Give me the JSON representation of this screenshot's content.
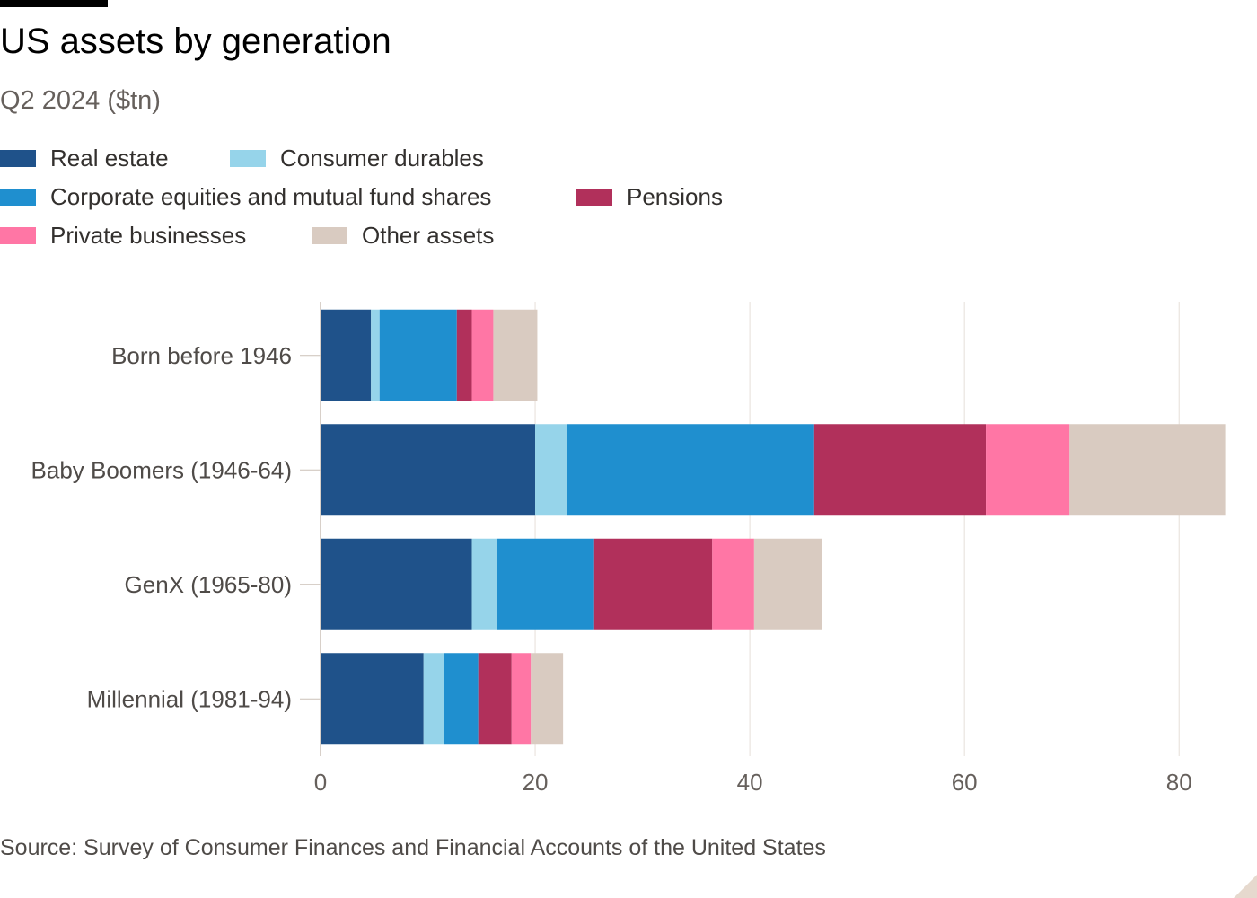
{
  "title": "US assets by generation",
  "subtitle": "Q2 2024 ($tn)",
  "source": "Source: Survey of Consumer Finances and Financial Accounts of the United States",
  "chart_data": {
    "type": "bar",
    "orientation": "horizontal",
    "stacked": true,
    "title": "US assets by generation",
    "subtitle": "Q2 2024 ($tn)",
    "xlabel": "",
    "ylabel": "",
    "xlim": [
      0,
      84.5
    ],
    "xticks": [
      0,
      20,
      40,
      60,
      80
    ],
    "grid": "vertical",
    "legend_position": "top",
    "categories": [
      "Born before 1946",
      "Baby Boomers (1946-64)",
      "GenX (1965-80)",
      "Millennial (1981-94)"
    ],
    "series": [
      {
        "name": "Real estate",
        "color": "#1f528a",
        "values": [
          4.7,
          20.0,
          14.1,
          9.6
        ]
      },
      {
        "name": "Consumer durables",
        "color": "#96d4ea",
        "values": [
          0.8,
          3.0,
          2.3,
          1.9
        ]
      },
      {
        "name": "Corporate equities and mutual fund shares",
        "color": "#1f8fcf",
        "values": [
          7.2,
          23.0,
          9.1,
          3.2
        ]
      },
      {
        "name": "Pensions",
        "color": "#b1305b",
        "values": [
          1.4,
          16.0,
          11.0,
          3.1
        ]
      },
      {
        "name": "Private businesses",
        "color": "#ff76a5",
        "values": [
          2.0,
          7.8,
          3.9,
          1.8
        ]
      },
      {
        "name": "Other assets",
        "color": "#d9cbc1",
        "values": [
          4.1,
          14.5,
          6.3,
          3.0
        ]
      }
    ]
  }
}
